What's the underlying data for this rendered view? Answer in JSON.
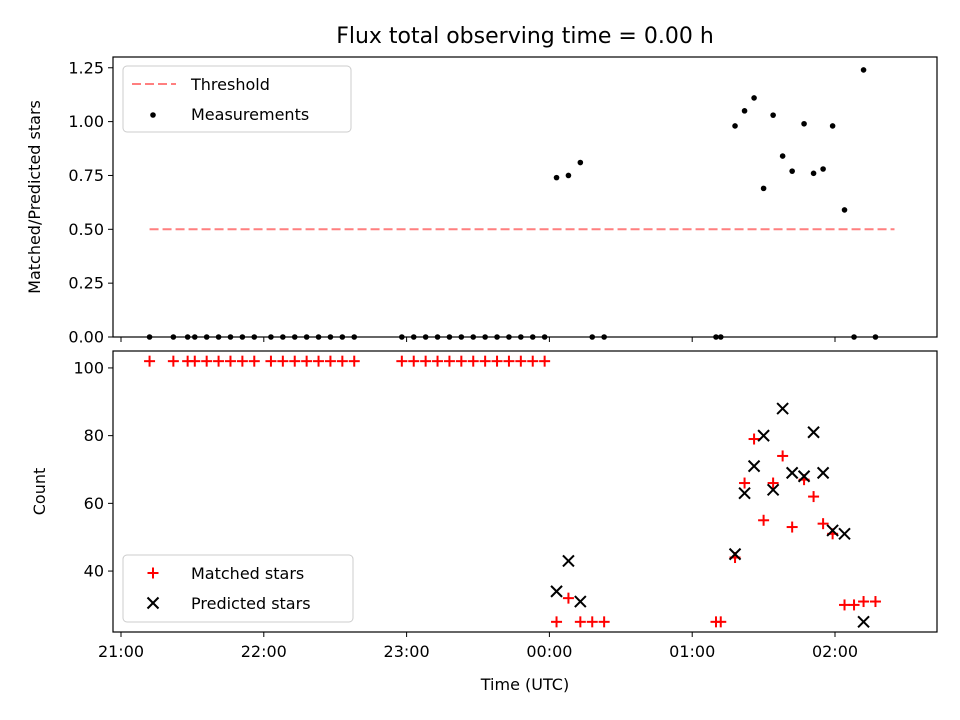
{
  "chart_data": [
    {
      "type": "scatter",
      "title": "Flux total observing time = 0.00 h",
      "xlabel": "",
      "ylabel": "Matched/Predicted stars",
      "ylim": [
        0,
        1.3
      ],
      "yticks": [
        "0.00",
        "0.25",
        "0.50",
        "0.75",
        "1.00",
        "1.25"
      ],
      "legend_position": "upper-left",
      "threshold": {
        "name": "Threshold",
        "y": 0.5,
        "x_range": [
          "21:12",
          "02:25"
        ],
        "color": "#ff7f7f"
      },
      "series": [
        {
          "name": "Measurements",
          "color": "#000000",
          "points": [
            [
              "21:12",
              0
            ],
            [
              "21:22",
              0
            ],
            [
              "21:28",
              0
            ],
            [
              "21:31",
              0
            ],
            [
              "21:36",
              0
            ],
            [
              "21:41",
              0
            ],
            [
              "21:46",
              0
            ],
            [
              "21:51",
              0
            ],
            [
              "21:56",
              0
            ],
            [
              "22:03",
              0
            ],
            [
              "22:08",
              0
            ],
            [
              "22:13",
              0
            ],
            [
              "22:18",
              0
            ],
            [
              "22:23",
              0
            ],
            [
              "22:28",
              0
            ],
            [
              "22:33",
              0
            ],
            [
              "22:38",
              0
            ],
            [
              "22:58",
              0
            ],
            [
              "23:03",
              0
            ],
            [
              "23:08",
              0
            ],
            [
              "23:13",
              0
            ],
            [
              "23:18",
              0
            ],
            [
              "23:23",
              0
            ],
            [
              "23:28",
              0
            ],
            [
              "23:33",
              0
            ],
            [
              "23:38",
              0
            ],
            [
              "23:43",
              0
            ],
            [
              "23:48",
              0
            ],
            [
              "23:53",
              0
            ],
            [
              "23:58",
              0
            ],
            [
              "00:03",
              0.74
            ],
            [
              "00:08",
              0.75
            ],
            [
              "00:13",
              0.81
            ],
            [
              "00:18",
              0
            ],
            [
              "00:23",
              0
            ],
            [
              "01:10",
              0
            ],
            [
              "01:12",
              0
            ],
            [
              "01:18",
              0.98
            ],
            [
              "01:22",
              1.05
            ],
            [
              "01:26",
              1.11
            ],
            [
              "01:30",
              0.69
            ],
            [
              "01:34",
              1.03
            ],
            [
              "01:38",
              0.84
            ],
            [
              "01:42",
              0.77
            ],
            [
              "01:47",
              0.99
            ],
            [
              "01:51",
              0.76
            ],
            [
              "01:55",
              0.78
            ],
            [
              "01:59",
              0.98
            ],
            [
              "02:04",
              0.59
            ],
            [
              "02:08",
              0
            ],
            [
              "02:12",
              1.24
            ],
            [
              "02:17",
              0
            ]
          ]
        }
      ]
    },
    {
      "type": "scatter",
      "title": "",
      "xlabel": "Time (UTC)",
      "ylabel": "Count",
      "ylim": [
        22,
        105
      ],
      "yticks": [
        "40",
        "60",
        "80",
        "100"
      ],
      "xticks": [
        "21:00",
        "22:00",
        "23:00",
        "00:00",
        "01:00",
        "02:00"
      ],
      "legend_position": "lower-left",
      "series": [
        {
          "name": "Matched stars",
          "marker": "plus",
          "color": "#ff0000",
          "points": [
            [
              "21:12",
              102
            ],
            [
              "21:22",
              102
            ],
            [
              "21:28",
              102
            ],
            [
              "21:31",
              102
            ],
            [
              "21:36",
              102
            ],
            [
              "21:41",
              102
            ],
            [
              "21:46",
              102
            ],
            [
              "21:51",
              102
            ],
            [
              "21:56",
              102
            ],
            [
              "22:03",
              102
            ],
            [
              "22:08",
              102
            ],
            [
              "22:13",
              102
            ],
            [
              "22:18",
              102
            ],
            [
              "22:23",
              102
            ],
            [
              "22:28",
              102
            ],
            [
              "22:33",
              102
            ],
            [
              "22:38",
              102
            ],
            [
              "22:58",
              102
            ],
            [
              "23:03",
              102
            ],
            [
              "23:08",
              102
            ],
            [
              "23:13",
              102
            ],
            [
              "23:18",
              102
            ],
            [
              "23:23",
              102
            ],
            [
              "23:28",
              102
            ],
            [
              "23:33",
              102
            ],
            [
              "23:38",
              102
            ],
            [
              "23:43",
              102
            ],
            [
              "23:48",
              102
            ],
            [
              "23:53",
              102
            ],
            [
              "23:58",
              102
            ],
            [
              "00:03",
              25
            ],
            [
              "00:08",
              32
            ],
            [
              "00:13",
              25
            ],
            [
              "00:18",
              25
            ],
            [
              "00:23",
              25
            ],
            [
              "01:10",
              25
            ],
            [
              "01:12",
              25
            ],
            [
              "01:18",
              44
            ],
            [
              "01:22",
              66
            ],
            [
              "01:26",
              79
            ],
            [
              "01:30",
              55
            ],
            [
              "01:34",
              66
            ],
            [
              "01:38",
              74
            ],
            [
              "01:42",
              53
            ],
            [
              "01:47",
              67
            ],
            [
              "01:51",
              62
            ],
            [
              "01:55",
              54
            ],
            [
              "01:59",
              51
            ],
            [
              "02:04",
              30
            ],
            [
              "02:08",
              30
            ],
            [
              "02:12",
              31
            ],
            [
              "02:17",
              31
            ]
          ]
        },
        {
          "name": "Predicted stars",
          "marker": "x",
          "color": "#000000",
          "points": [
            [
              "00:03",
              34
            ],
            [
              "00:08",
              43
            ],
            [
              "00:13",
              31
            ],
            [
              "01:18",
              45
            ],
            [
              "01:22",
              63
            ],
            [
              "01:26",
              71
            ],
            [
              "01:30",
              80
            ],
            [
              "01:34",
              64
            ],
            [
              "01:38",
              88
            ],
            [
              "01:42",
              69
            ],
            [
              "01:47",
              68
            ],
            [
              "01:51",
              81
            ],
            [
              "01:55",
              69
            ],
            [
              "01:59",
              52
            ],
            [
              "02:04",
              51
            ],
            [
              "02:12",
              25
            ]
          ]
        }
      ]
    }
  ]
}
